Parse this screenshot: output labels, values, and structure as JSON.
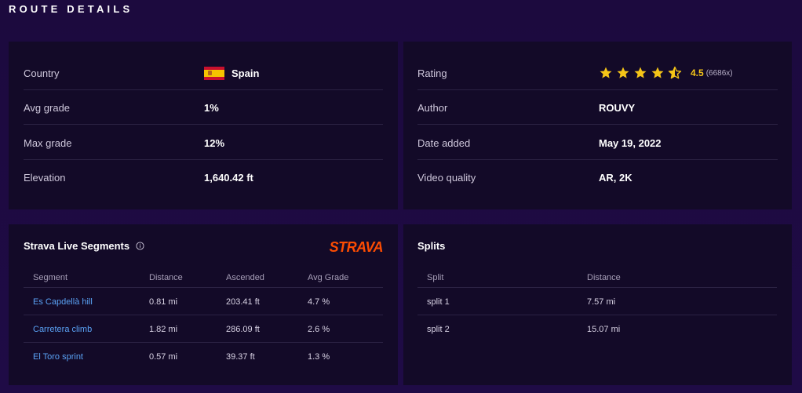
{
  "heading": "ROUTE DETAILS",
  "details_left": [
    {
      "label": "Country",
      "value": "Spain"
    },
    {
      "label": "Avg grade",
      "value": "1%"
    },
    {
      "label": "Max grade",
      "value": "12%"
    },
    {
      "label": "Elevation",
      "value": "1,640.42 ft"
    }
  ],
  "details_right": [
    {
      "label": "Rating",
      "value": "4.5",
      "count": "(6686x)",
      "stars": 4.5
    },
    {
      "label": "Author",
      "value": "ROUVY"
    },
    {
      "label": "Date added",
      "value": "May 19, 2022"
    },
    {
      "label": "Video quality",
      "value": "AR, 2K"
    }
  ],
  "strava": {
    "title": "Strava Live Segments",
    "logo": "STRAVA",
    "columns": [
      "Segment",
      "Distance",
      "Ascended",
      "Avg Grade"
    ],
    "rows": [
      {
        "segment": "Es Capdellà hill",
        "distance": "0.81 mi",
        "ascended": "203.41 ft",
        "grade": "4.7 %"
      },
      {
        "segment": "Carretera climb",
        "distance": "1.82 mi",
        "ascended": "286.09 ft",
        "grade": "2.6 %"
      },
      {
        "segment": "El Toro sprint",
        "distance": "0.57 mi",
        "ascended": "39.37 ft",
        "grade": "1.3 %"
      }
    ]
  },
  "splits": {
    "title": "Splits",
    "columns": [
      "Split",
      "Distance"
    ],
    "rows": [
      {
        "split": "split 1",
        "distance": "7.57 mi"
      },
      {
        "split": "split 2",
        "distance": "15.07 mi"
      }
    ]
  },
  "colors": {
    "accent_star": "#f5c518",
    "strava": "#fc4c02",
    "link": "#5aa2f5"
  },
  "icons": {
    "flag": "spain-flag-icon",
    "info": "info-icon",
    "star": "star-icon"
  }
}
